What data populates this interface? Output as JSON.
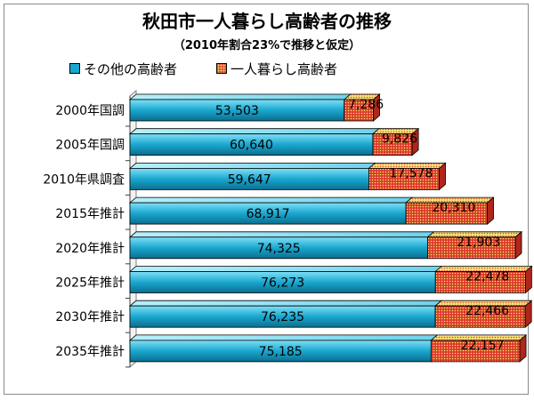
{
  "chart_data": {
    "type": "bar",
    "orientation": "horizontal",
    "stacked": true,
    "title": "秋田市一人暮らし高齢者の推移",
    "subtitle": "（2010年割合23%で推移と仮定）",
    "legend_position": "top",
    "categories": [
      "2000年国調",
      "2005年国調",
      "2010年県調査",
      "2015年推計",
      "2020年推計",
      "2025年推計",
      "2030年推計",
      "2035年推計"
    ],
    "series": [
      {
        "name": "その他の高齢者",
        "values": [
          53503,
          60640,
          59647,
          68917,
          74325,
          76273,
          76235,
          75185
        ],
        "labels": [
          "53,503",
          "60,640",
          "59,647",
          "68,917",
          "74,325",
          "76,273",
          "76,235",
          "75,185"
        ],
        "color": "#1aa7cf"
      },
      {
        "name": "一人暮らし高齢者",
        "values": [
          7286,
          9826,
          17578,
          20310,
          21903,
          22478,
          22466,
          22157
        ],
        "labels": [
          "7,286",
          "9,826",
          "17,578",
          "20,310",
          "21,903",
          "22,478",
          "22,466",
          "22,157"
        ],
        "color": "#d9372a"
      }
    ],
    "xlim": [
      0,
      100000
    ],
    "grid": false
  }
}
